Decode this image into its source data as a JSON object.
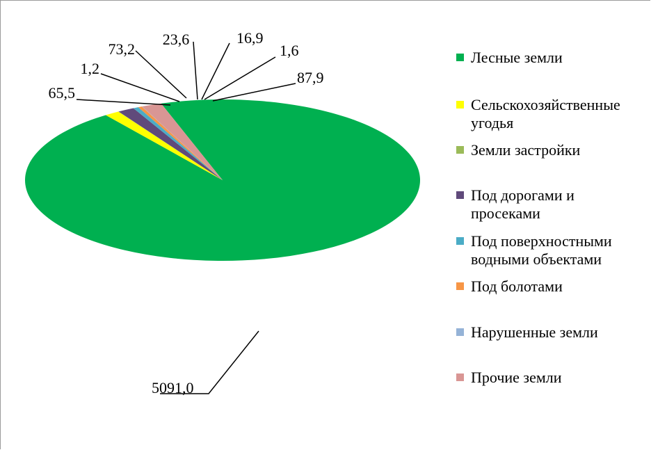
{
  "chart_data": {
    "type": "pie",
    "title": "",
    "categories": [
      "Лесные земли",
      "Сельскохозяйственные угодья",
      "Земли застройки",
      "Под  дорогами и просеками",
      "Под поверхностными водными объектами",
      "Под болотами",
      "Нарушенные земли",
      "Прочие земли"
    ],
    "values": [
      5091.0,
      65.5,
      1.2,
      73.2,
      23.6,
      16.9,
      1.6,
      87.9
    ],
    "data_labels": [
      "5091,0",
      "65,5",
      "1,2",
      "73,2",
      "23,6",
      "16,9",
      "1,6",
      "87,9"
    ],
    "colors": [
      "#00B050",
      "#FFFF00",
      "#9BBB59",
      "#604A7B",
      "#4BACC6",
      "#F79646",
      "#95B3D7",
      "#D99694"
    ],
    "legend_position": "right",
    "style": "3d"
  }
}
